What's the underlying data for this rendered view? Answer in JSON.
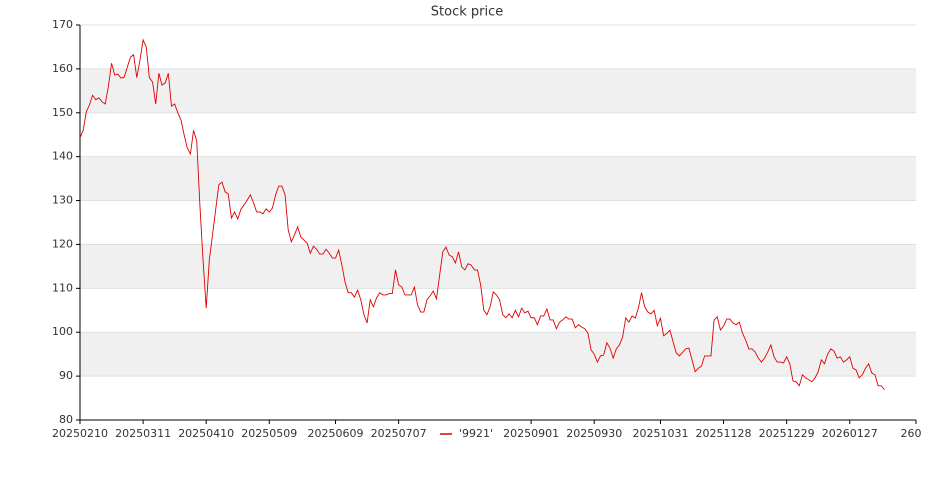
{
  "chart_data": {
    "type": "line",
    "title": "Stock price",
    "series": [
      {
        "name": "'9921'",
        "color": "#e00000",
        "values": [
          144.3,
          146,
          150.2,
          151.8,
          154,
          153,
          153.4,
          152.5,
          152,
          156,
          161.3,
          158.6,
          158.8,
          157.9,
          158.1,
          160.4,
          162.7,
          163.2,
          158,
          162,
          166.6,
          165,
          158,
          157,
          152,
          159,
          156.3,
          156.8,
          159,
          151.5,
          152,
          150,
          148.4,
          145,
          142,
          140.6,
          146,
          143.6,
          129,
          116.5,
          105.5,
          116.5,
          122.2,
          127.9,
          133.6,
          134.2,
          132,
          131.5,
          126,
          127.4,
          125.8,
          128,
          129,
          130.1,
          131.3,
          129.5,
          127.4,
          127.4,
          127,
          128.1,
          127.4,
          128.3,
          131.3,
          133.3,
          133.3,
          131.3,
          123.3,
          120.6,
          122.2,
          124,
          121.7,
          121,
          120.3,
          118,
          119.6,
          118.9,
          117.8,
          117.8,
          118.9,
          118,
          116.9,
          116.9,
          118.7,
          115.3,
          111.5,
          109,
          109,
          108,
          109.6,
          107.4,
          104,
          102.1,
          107.4,
          105.8,
          107.8,
          109,
          108.5,
          108.5,
          108.8,
          108.8,
          114.2,
          110.8,
          110.3,
          108.5,
          108.5,
          108.5,
          110.3,
          106.2,
          104.6,
          104.6,
          107.4,
          108.3,
          109.4,
          107.6,
          113,
          118.3,
          119.4,
          117.6,
          117.2,
          115.8,
          118.3,
          114.9,
          114.2,
          115.6,
          115.3,
          114.2,
          114.2,
          110.8,
          105,
          104,
          105.8,
          109.2,
          108.5,
          107.4,
          104,
          103.3,
          104.2,
          103.3,
          105,
          103.5,
          105.5,
          104.4,
          104.8,
          103.3,
          103.3,
          101.7,
          103.7,
          103.7,
          105.3,
          102.8,
          102.8,
          100.8,
          102.3,
          102.8,
          103.5,
          103,
          103,
          101,
          101.7,
          101.2,
          100.8,
          99.8,
          96,
          95,
          93.2,
          94.6,
          94.8,
          97.6,
          96.4,
          94.1,
          96.2,
          97.1,
          98.9,
          103.3,
          102.3,
          103.7,
          103.2,
          105.5,
          109,
          105.8,
          104.6,
          104.2,
          105,
          101.5,
          103.2,
          99.2,
          99.7,
          100.5,
          97.8,
          95.3,
          94.6,
          95.4,
          96.2,
          96.4,
          93.7,
          91,
          91.8,
          92.3,
          94.6,
          94.6,
          94.6,
          102.8,
          103.5,
          100.5,
          101.4,
          103,
          103,
          102.1,
          101.7,
          102.3,
          99.8,
          98.2,
          96.2,
          96.2,
          95.5,
          94.1,
          93.2,
          94.1,
          95.5,
          97.1,
          94.4,
          93.2,
          93.2,
          93,
          94.4,
          92.8,
          88.9,
          88.7,
          87.8,
          90.3,
          89.6,
          89.2,
          88.7,
          89.6,
          91,
          93.7,
          92.8,
          95,
          96.2,
          95.7,
          94.1,
          94.4,
          93.2,
          93.7,
          94.4,
          91.8,
          91.4,
          89.6,
          90.3,
          91.8,
          92.8,
          90.7,
          90.3,
          87.8,
          87.8,
          86.9
        ]
      }
    ],
    "xlim": [
      0,
      265
    ],
    "xticks": [
      {
        "value": 0,
        "label": "20250210"
      },
      {
        "value": 20,
        "label": "20250311"
      },
      {
        "value": 40,
        "label": "20250410"
      },
      {
        "value": 60,
        "label": "20250509"
      },
      {
        "value": 81,
        "label": "20250609"
      },
      {
        "value": 101,
        "label": "20250707"
      },
      {
        "value": 143,
        "label": "20250901"
      },
      {
        "value": 163,
        "label": "20250930"
      },
      {
        "value": 184,
        "label": "20251031"
      },
      {
        "value": 204,
        "label": "20251128"
      },
      {
        "value": 224,
        "label": "20251229"
      },
      {
        "value": 244,
        "label": "20260127"
      },
      {
        "value": 265,
        "label": "260"
      }
    ],
    "ylim": [
      80,
      170
    ],
    "yticks": [
      80,
      90,
      100,
      110,
      120,
      130,
      140,
      150,
      160,
      170
    ],
    "grid": true,
    "legend": "bottom"
  }
}
